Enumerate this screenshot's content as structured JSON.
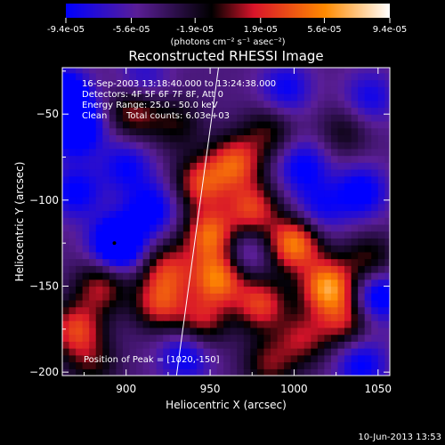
{
  "colorbar": {
    "tick_labels": [
      "-9.4e-05",
      "-5.6e-05",
      "-1.9e-05",
      "1.9e-05",
      "5.6e-05",
      "9.4e-05"
    ],
    "tick_values": [
      -9.4e-05,
      -5.6e-05,
      -1.9e-05,
      1.9e-05,
      5.6e-05,
      9.4e-05
    ],
    "range": [
      -9.4e-05,
      9.4e-05
    ],
    "units": "(photons cm⁻² s⁻¹ asec⁻²)",
    "colors": [
      "#0000ff",
      "#5a1e96",
      "#000000",
      "#d8142a",
      "#ff8a00",
      "#ffffff"
    ]
  },
  "chart_data": {
    "type": "heatmap",
    "title": "Reconstructed RHESSI Image",
    "xlabel": "Heliocentric X (arcsec)",
    "ylabel": "Heliocentric Y (arcsec)",
    "xlim": [
      862,
      1057
    ],
    "ylim": [
      -202,
      -23
    ],
    "x_ticks": [
      900,
      950,
      1000,
      1050
    ],
    "x_tick_labels": [
      "900",
      "950",
      "1000",
      "1050"
    ],
    "y_ticks": [
      -50,
      -100,
      -150,
      -200
    ],
    "y_tick_labels": [
      "−50",
      "−100",
      "−150",
      "−200"
    ],
    "annotations": {
      "time_range": "16-Sep-2003 13:18:40.000 to 13:24:38.000",
      "detectors": "Detectors: 4F 5F 6F 7F 8F, Att 0",
      "energy": "Energy Range: 25.0 - 50.0 keV",
      "method": "Clean",
      "total_counts": "Total counts: 6.03e+03",
      "peak": "Position of Peak = [1020,-150]"
    },
    "peak_position": [
      1020,
      -150
    ],
    "limb_line": [
      [
        955,
        -23
      ],
      [
        930,
        -202
      ]
    ],
    "minimum_marker": [
      893,
      -125
    ],
    "blobs": [
      {
        "x": 862,
        "y": -40,
        "v": -0.9
      },
      {
        "x": 870,
        "y": -58,
        "v": -0.8
      },
      {
        "x": 895,
        "y": -125,
        "v": -0.95
      },
      {
        "x": 870,
        "y": -95,
        "v": -0.5
      },
      {
        "x": 885,
        "y": -150,
        "v": 0.55
      },
      {
        "x": 870,
        "y": -175,
        "v": 0.7
      },
      {
        "x": 905,
        "y": -48,
        "v": 0.55
      },
      {
        "x": 930,
        "y": -55,
        "v": 0.35
      },
      {
        "x": 900,
        "y": -80,
        "v": -0.45
      },
      {
        "x": 945,
        "y": -90,
        "v": 0.7
      },
      {
        "x": 965,
        "y": -78,
        "v": 0.75
      },
      {
        "x": 975,
        "y": -105,
        "v": 0.7
      },
      {
        "x": 950,
        "y": -120,
        "v": 0.85
      },
      {
        "x": 955,
        "y": -145,
        "v": 0.9
      },
      {
        "x": 925,
        "y": -140,
        "v": 0.6
      },
      {
        "x": 920,
        "y": -160,
        "v": 0.65
      },
      {
        "x": 945,
        "y": -170,
        "v": 0.55
      },
      {
        "x": 980,
        "y": -160,
        "v": 0.7
      },
      {
        "x": 1000,
        "y": -125,
        "v": 0.95
      },
      {
        "x": 1020,
        "y": -150,
        "v": 1.0
      },
      {
        "x": 1030,
        "y": -170,
        "v": 0.55
      },
      {
        "x": 1005,
        "y": -180,
        "v": 0.5
      },
      {
        "x": 1045,
        "y": -135,
        "v": 0.45
      },
      {
        "x": 1050,
        "y": -155,
        "v": -0.65
      },
      {
        "x": 1040,
        "y": -95,
        "v": -0.55
      },
      {
        "x": 1005,
        "y": -80,
        "v": -0.5
      },
      {
        "x": 985,
        "y": -60,
        "v": 0.4
      },
      {
        "x": 1030,
        "y": -60,
        "v": 0.3
      },
      {
        "x": 1045,
        "y": -40,
        "v": -0.4
      },
      {
        "x": 995,
        "y": -35,
        "v": -0.45
      },
      {
        "x": 915,
        "y": -105,
        "v": -0.55
      },
      {
        "x": 935,
        "y": -190,
        "v": -0.5
      },
      {
        "x": 985,
        "y": -195,
        "v": 0.45
      },
      {
        "x": 1040,
        "y": -195,
        "v": -0.5
      },
      {
        "x": 880,
        "y": -195,
        "v": 0.35
      },
      {
        "x": 970,
        "y": -130,
        "v": -0.35
      },
      {
        "x": 1015,
        "y": -105,
        "v": -0.4
      },
      {
        "x": 910,
        "y": -30,
        "v": -0.35
      }
    ]
  },
  "footer": {
    "date": "10-Jun-2013 13:53"
  }
}
